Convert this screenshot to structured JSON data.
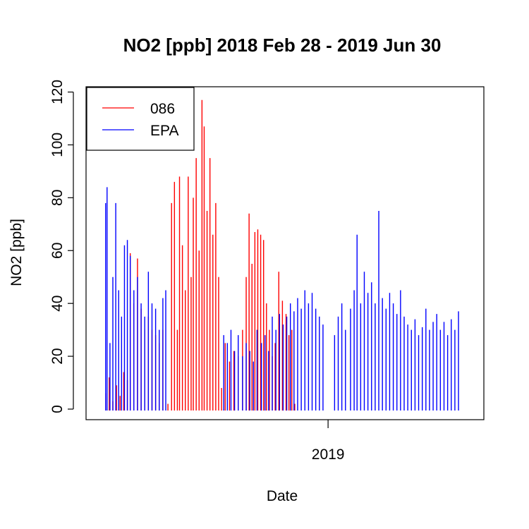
{
  "chart_data": {
    "type": "line",
    "title": "NO2 [ppb] 2018 Feb 28 - 2019 Jun 30",
    "xlabel": "Date",
    "ylabel": "NO2 [ppb]",
    "xlim": [
      "2018-02-01",
      "2019-08-04"
    ],
    "ylim": [
      -4,
      122
    ],
    "x_ticks": [
      {
        "date": "2019-01-01",
        "label": "2019"
      }
    ],
    "y_ticks": [
      0,
      20,
      40,
      60,
      80,
      100,
      120
    ],
    "grid": false,
    "legend_position": "top-left",
    "series": [
      {
        "name": "086",
        "color": "#ff0000",
        "points": [
          [
            "2018-02-28",
            6
          ],
          [
            "2018-03-05",
            12
          ],
          [
            "2018-03-10",
            3
          ],
          [
            "2018-03-15",
            9
          ],
          [
            "2018-03-20",
            5
          ],
          [
            "2018-03-25",
            14
          ],
          [
            "2018-03-30",
            11
          ],
          [
            "2018-04-03",
            59
          ],
          [
            "2018-04-08",
            40
          ],
          [
            "2018-04-13",
            57
          ],
          [
            "2018-04-18",
            38
          ],
          [
            "2018-04-23",
            30
          ],
          [
            "2018-04-28",
            35
          ],
          [
            "2018-05-03",
            30
          ],
          [
            "2018-05-08",
            28
          ],
          [
            "2018-05-13",
            25
          ],
          [
            "2018-05-18",
            30
          ],
          [
            "2018-05-25",
            2
          ],
          [
            "2018-05-30",
            78
          ],
          [
            "2018-06-03",
            86
          ],
          [
            "2018-06-07",
            30
          ],
          [
            "2018-06-10",
            88
          ],
          [
            "2018-06-14",
            62
          ],
          [
            "2018-06-18",
            45
          ],
          [
            "2018-06-22",
            88
          ],
          [
            "2018-06-26",
            50
          ],
          [
            "2018-06-29",
            80
          ],
          [
            "2018-07-03",
            95
          ],
          [
            "2018-07-07",
            60
          ],
          [
            "2018-07-11",
            117
          ],
          [
            "2018-07-14",
            107
          ],
          [
            "2018-07-18",
            75
          ],
          [
            "2018-07-22",
            95
          ],
          [
            "2018-07-26",
            66
          ],
          [
            "2018-07-30",
            78
          ],
          [
            "2018-08-03",
            50
          ],
          [
            "2018-08-07",
            8
          ],
          [
            "2018-08-12",
            25
          ],
          [
            "2018-08-18",
            18
          ],
          [
            "2018-08-24",
            22
          ],
          [
            "2018-08-30",
            20
          ],
          [
            "2018-09-05",
            30
          ],
          [
            "2018-09-10",
            50
          ],
          [
            "2018-09-14",
            74
          ],
          [
            "2018-09-18",
            55
          ],
          [
            "2018-09-22",
            67
          ],
          [
            "2018-09-26",
            68
          ],
          [
            "2018-09-30",
            66
          ],
          [
            "2018-10-04",
            64
          ],
          [
            "2018-10-08",
            40
          ],
          [
            "2018-10-12",
            30
          ],
          [
            "2018-10-16",
            20
          ],
          [
            "2018-10-20",
            25
          ],
          [
            "2018-10-25",
            52
          ],
          [
            "2018-10-30",
            41
          ],
          [
            "2018-11-04",
            36
          ],
          [
            "2018-11-08",
            28
          ],
          [
            "2018-11-12",
            30
          ],
          [
            "2018-11-16",
            2
          ]
        ]
      },
      {
        "name": "EPA",
        "color": "#0000ff",
        "points": [
          [
            "2018-02-28",
            78
          ],
          [
            "2018-03-02",
            84
          ],
          [
            "2018-03-06",
            25
          ],
          [
            "2018-03-10",
            50
          ],
          [
            "2018-03-14",
            78
          ],
          [
            "2018-03-18",
            45
          ],
          [
            "2018-03-22",
            35
          ],
          [
            "2018-03-26",
            62
          ],
          [
            "2018-03-30",
            64
          ],
          [
            "2018-04-03",
            58
          ],
          [
            "2018-04-08",
            45
          ],
          [
            "2018-04-13",
            50
          ],
          [
            "2018-04-18",
            40
          ],
          [
            "2018-04-23",
            35
          ],
          [
            "2018-04-28",
            52
          ],
          [
            "2018-05-03",
            40
          ],
          [
            "2018-05-08",
            38
          ],
          [
            "2018-05-13",
            30
          ],
          [
            "2018-05-18",
            42
          ],
          [
            "2018-05-22",
            45
          ],
          [
            "2018-08-10",
            28
          ],
          [
            "2018-08-15",
            25
          ],
          [
            "2018-08-20",
            30
          ],
          [
            "2018-08-25",
            22
          ],
          [
            "2018-08-30",
            28
          ],
          [
            "2018-09-05",
            20
          ],
          [
            "2018-09-10",
            25
          ],
          [
            "2018-09-15",
            22
          ],
          [
            "2018-09-20",
            18
          ],
          [
            "2018-09-25",
            30
          ],
          [
            "2018-10-01",
            25
          ],
          [
            "2018-10-06",
            28
          ],
          [
            "2018-10-11",
            22
          ],
          [
            "2018-10-16",
            35
          ],
          [
            "2018-10-21",
            30
          ],
          [
            "2018-10-26",
            36
          ],
          [
            "2018-10-31",
            32
          ],
          [
            "2018-11-05",
            35
          ],
          [
            "2018-11-10",
            40
          ],
          [
            "2018-11-15",
            37
          ],
          [
            "2018-11-20",
            42
          ],
          [
            "2018-11-25",
            38
          ],
          [
            "2018-11-30",
            45
          ],
          [
            "2018-12-05",
            40
          ],
          [
            "2018-12-10",
            44
          ],
          [
            "2018-12-15",
            38
          ],
          [
            "2018-12-20",
            35
          ],
          [
            "2018-12-25",
            32
          ],
          [
            "2019-01-10",
            28
          ],
          [
            "2019-01-15",
            35
          ],
          [
            "2019-01-20",
            40
          ],
          [
            "2019-01-25",
            30
          ],
          [
            "2019-02-01",
            38
          ],
          [
            "2019-02-06",
            45
          ],
          [
            "2019-02-10",
            66
          ],
          [
            "2019-02-15",
            40
          ],
          [
            "2019-02-20",
            52
          ],
          [
            "2019-02-25",
            44
          ],
          [
            "2019-03-02",
            48
          ],
          [
            "2019-03-07",
            40
          ],
          [
            "2019-03-12",
            75
          ],
          [
            "2019-03-17",
            42
          ],
          [
            "2019-03-22",
            38
          ],
          [
            "2019-03-27",
            44
          ],
          [
            "2019-04-01",
            40
          ],
          [
            "2019-04-06",
            36
          ],
          [
            "2019-04-11",
            45
          ],
          [
            "2019-04-16",
            35
          ],
          [
            "2019-04-21",
            32
          ],
          [
            "2019-04-26",
            30
          ],
          [
            "2019-05-01",
            34
          ],
          [
            "2019-05-06",
            28
          ],
          [
            "2019-05-11",
            31
          ],
          [
            "2019-05-16",
            38
          ],
          [
            "2019-05-21",
            30
          ],
          [
            "2019-05-26",
            33
          ],
          [
            "2019-05-31",
            36
          ],
          [
            "2019-06-05",
            30
          ],
          [
            "2019-06-10",
            33
          ],
          [
            "2019-06-15",
            28
          ],
          [
            "2019-06-20",
            34
          ],
          [
            "2019-06-25",
            30
          ],
          [
            "2019-06-30",
            37
          ]
        ]
      }
    ]
  }
}
